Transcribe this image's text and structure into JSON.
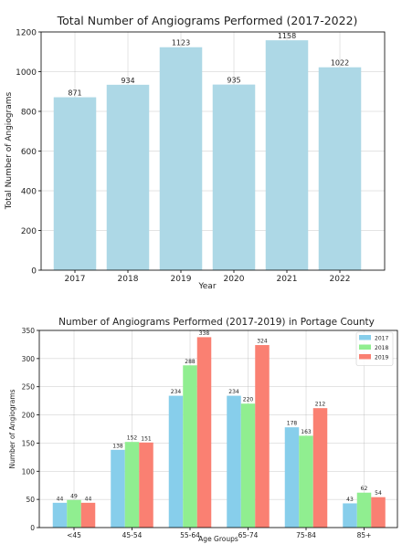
{
  "chart_data": [
    {
      "type": "bar",
      "title": "Total Number of Angiograms Performed (2017-2022)",
      "xlabel": "Year",
      "ylabel": "Total Number of Angiograms",
      "categories": [
        "2017",
        "2018",
        "2019",
        "2020",
        "2021",
        "2022"
      ],
      "values": [
        871,
        934,
        1123,
        935,
        1158,
        1022
      ],
      "ylim": [
        0,
        1200
      ],
      "yticks": [
        0,
        200,
        400,
        600,
        800,
        1000,
        1200
      ],
      "grid": true,
      "bar_color": "#add8e6"
    },
    {
      "type": "bar",
      "title": "Number of Angiograms Performed (2017-2019) in Portage County",
      "xlabel": "Age Groups",
      "ylabel": "Number of Angiograms",
      "categories": [
        "<45",
        "45-54",
        "55-64",
        "65-74",
        "75-84",
        "85+"
      ],
      "series": [
        {
          "name": "2017",
          "values": [
            44,
            138,
            234,
            234,
            178,
            43
          ],
          "color": "#87ceeb"
        },
        {
          "name": "2018",
          "values": [
            49,
            152,
            288,
            220,
            163,
            62
          ],
          "color": "#90ee90"
        },
        {
          "name": "2019",
          "values": [
            44,
            151,
            338,
            324,
            212,
            54
          ],
          "color": "#fa8072"
        }
      ],
      "ylim": [
        0,
        350
      ],
      "yticks": [
        0,
        50,
        100,
        150,
        200,
        250,
        300,
        350
      ],
      "grid": true,
      "legend": "top-right"
    }
  ]
}
